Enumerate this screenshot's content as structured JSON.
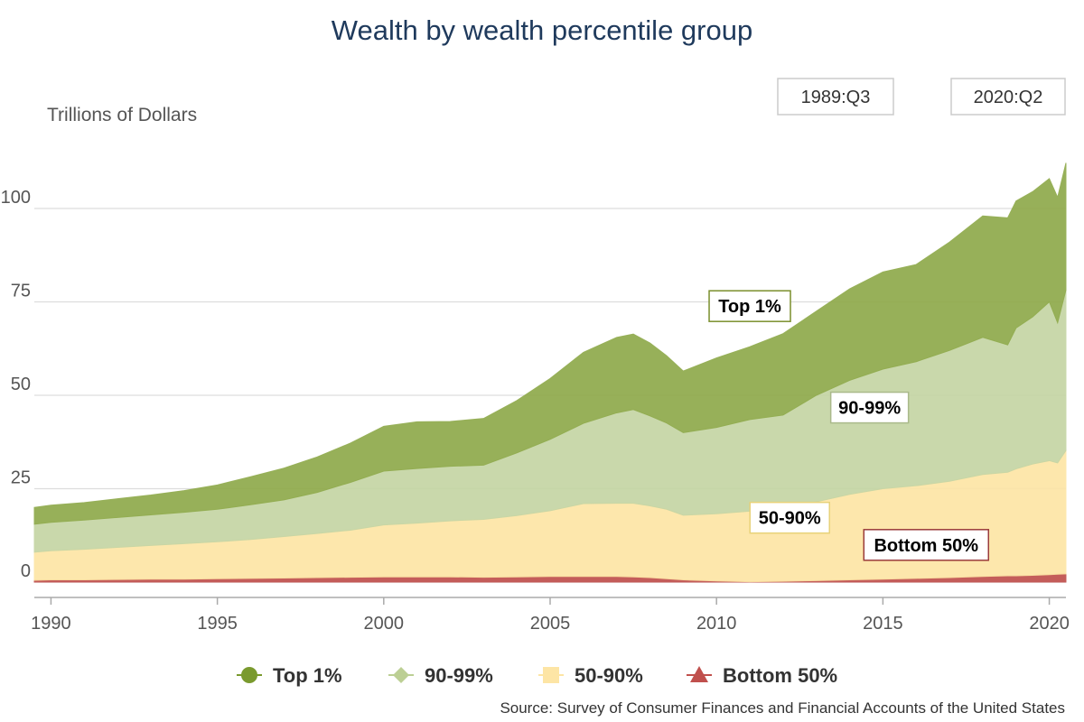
{
  "chart_data": {
    "type": "area",
    "stacked": true,
    "title": "Wealth by wealth percentile group",
    "ylabel": "Trillions of Dollars",
    "xlabel": "",
    "xlim": [
      1989.5,
      2020.5
    ],
    "ylim": [
      -2,
      115
    ],
    "yticks": [
      0,
      25,
      50,
      75,
      100
    ],
    "xticks": [
      1990,
      1995,
      2000,
      2005,
      2010,
      2015,
      2020
    ],
    "grid": true,
    "legend_position": "bottom",
    "range_start": "1989:Q3",
    "range_end": "2020:Q2",
    "source": "Source: Survey of Consumer Finances and Financial Accounts of the United States",
    "x": [
      1989.5,
      1990,
      1991,
      1992,
      1993,
      1994,
      1995,
      1996,
      1997,
      1998,
      1999,
      2000,
      2001,
      2002,
      2003,
      2004,
      2005,
      2006,
      2007,
      2007.5,
      2008,
      2008.5,
      2009,
      2010,
      2011,
      2012,
      2013,
      2014,
      2015,
      2016,
      2017,
      2018,
      2018.75,
      2019,
      2019.5,
      2020,
      2020.25,
      2020.5
    ],
    "series": [
      {
        "name": "Bottom 50%",
        "color": "#c0504d",
        "values": [
          0.5,
          0.6,
          0.6,
          0.7,
          0.8,
          0.8,
          0.9,
          1.0,
          1.1,
          1.2,
          1.3,
          1.4,
          1.4,
          1.4,
          1.3,
          1.4,
          1.5,
          1.5,
          1.5,
          1.4,
          1.2,
          0.9,
          0.6,
          0.3,
          0.1,
          0.2,
          0.4,
          0.6,
          0.8,
          1.0,
          1.2,
          1.5,
          1.7,
          1.7,
          1.8,
          2.0,
          2.1,
          2.2
        ]
      },
      {
        "name": "50-90%",
        "color": "#fde5a5",
        "values": [
          7.5,
          7.8,
          8.2,
          8.6,
          9.0,
          9.5,
          9.9,
          10.4,
          11.1,
          11.8,
          12.6,
          13.9,
          14.4,
          15.0,
          15.5,
          16.4,
          17.6,
          19.5,
          19.6,
          19.7,
          19.2,
          18.6,
          17.3,
          18.0,
          18.9,
          19.5,
          21.1,
          22.9,
          24.2,
          24.8,
          25.8,
          27.3,
          27.7,
          28.6,
          29.8,
          30.5,
          29.8,
          33.0
        ]
      },
      {
        "name": "90-99%",
        "color": "#c5d5a4",
        "values": [
          7.5,
          7.6,
          7.8,
          8.0,
          8.2,
          8.4,
          8.7,
          9.3,
          9.8,
          11.0,
          12.8,
          14.4,
          14.6,
          14.6,
          14.5,
          16.8,
          19.1,
          21.5,
          24.2,
          25.1,
          24.1,
          23.1,
          22.1,
          23.1,
          24.5,
          25.0,
          28.5,
          30.5,
          32.0,
          33.2,
          35.0,
          36.7,
          34.1,
          37.7,
          39.4,
          42.5,
          37.5,
          43.0
        ]
      },
      {
        "name": "Top 1%",
        "color": "#8faa4b",
        "values": [
          4.5,
          4.6,
          4.7,
          5.0,
          5.3,
          5.8,
          6.5,
          7.5,
          8.5,
          9.5,
          10.5,
          12.0,
          12.5,
          12.0,
          12.5,
          14.0,
          16.3,
          19.0,
          20.2,
          20.2,
          19.5,
          18.0,
          16.5,
          18.6,
          19.5,
          21.8,
          22.5,
          24.5,
          26.0,
          26.0,
          29.0,
          32.5,
          34.0,
          34.0,
          33.5,
          33.0,
          33.6,
          34.0
        ]
      }
    ],
    "annotations": [
      {
        "label": "Top 1%",
        "series": "Top 1%"
      },
      {
        "label": "90-99%",
        "series": "90-99%"
      },
      {
        "label": "50-90%",
        "series": "50-90%"
      },
      {
        "label": "Bottom 50%",
        "series": "Bottom 50%"
      }
    ],
    "legend": [
      {
        "label": "Top 1%",
        "color": "#7a9a2e",
        "marker": "circle"
      },
      {
        "label": "90-99%",
        "color": "#bccf94",
        "marker": "diamond"
      },
      {
        "label": "50-90%",
        "color": "#fde5a5",
        "marker": "square"
      },
      {
        "label": "Bottom 50%",
        "color": "#c0504d",
        "marker": "triangle"
      }
    ]
  }
}
